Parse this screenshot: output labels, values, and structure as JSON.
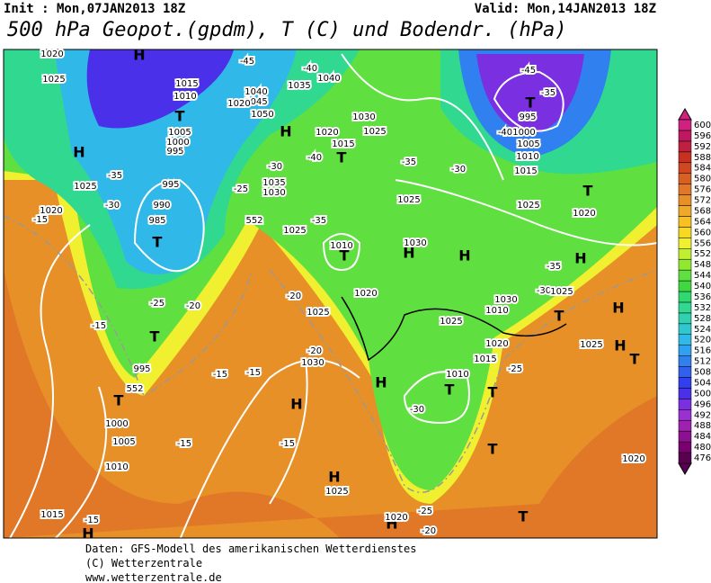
{
  "header": {
    "init": "Init : Mon,07JAN2013 18Z",
    "valid": "Valid: Mon,14JAN2013 18Z",
    "title": "500 hPa Geopot.(gpdm), T (C) und Bodendr. (hPa)"
  },
  "colorbar": {
    "values": [
      476,
      480,
      484,
      488,
      492,
      496,
      500,
      504,
      508,
      512,
      516,
      520,
      524,
      528,
      532,
      536,
      540,
      544,
      548,
      552,
      556,
      560,
      564,
      568,
      572,
      576,
      580,
      584,
      588,
      592,
      596,
      600
    ],
    "colors": [
      "#5a0050",
      "#7a0070",
      "#8c1090",
      "#a020b0",
      "#9a30d0",
      "#7a30e0",
      "#4a30e8",
      "#3040f0",
      "#3060f0",
      "#3080f0",
      "#30a0f0",
      "#30b8e8",
      "#30c8d0",
      "#30d0b0",
      "#30d890",
      "#30d870",
      "#40d840",
      "#60e040",
      "#90e830",
      "#c0f030",
      "#f0f030",
      "#f8d820",
      "#f8c020",
      "#f0a828",
      "#e89028",
      "#e07828",
      "#d86020",
      "#d04820",
      "#c83020",
      "#c02040",
      "#c01860",
      "#d02080"
    ]
  },
  "map_labels": [
    "H",
    "1020",
    "1025",
    "1015",
    "1010",
    "T",
    "1005",
    "1000",
    "995",
    "H",
    "1025",
    "1020",
    "-15",
    "-30",
    "-35",
    "995",
    "990",
    "985",
    "T",
    "-25",
    "-20",
    "-15",
    "T",
    "995",
    "552",
    "T",
    "1000",
    "1005",
    "1010",
    "1015",
    "-15",
    "H",
    "-45",
    "1040",
    "1045",
    "1050",
    "H",
    "1035",
    "1040",
    "-40",
    "1020",
    "1030",
    "1025",
    "1020",
    "1015",
    "T",
    "-40",
    "-30",
    "1035",
    "1030",
    "-25",
    "552",
    "1025",
    "-35",
    "1010",
    "T",
    "1020",
    "-20",
    "1025",
    "-20",
    "1030",
    "H",
    "-15",
    "-15",
    "-15",
    "-15",
    "H",
    "1025",
    "-35",
    "1025",
    "1030",
    "H",
    "-30",
    "H",
    "1025",
    "1020",
    "1015",
    "-25",
    "1010",
    "T",
    "-30",
    "H",
    "T",
    "T",
    "H",
    "1020",
    "-25",
    "-20",
    "T",
    "-45",
    "T",
    "995",
    "-40",
    "1000",
    "1005",
    "-35",
    "1010",
    "1015",
    "1025",
    "T",
    "1020",
    "-35",
    "H",
    "-30",
    "1025",
    "1030",
    "1010",
    "T",
    "H",
    "1025",
    "H",
    "T",
    "1020"
  ],
  "footer": [
    "Daten: GFS-Modell des amerikanischen Wetterdienstes",
    "(C) Wetterzentrale",
    "www.wetterzentrale.de"
  ]
}
